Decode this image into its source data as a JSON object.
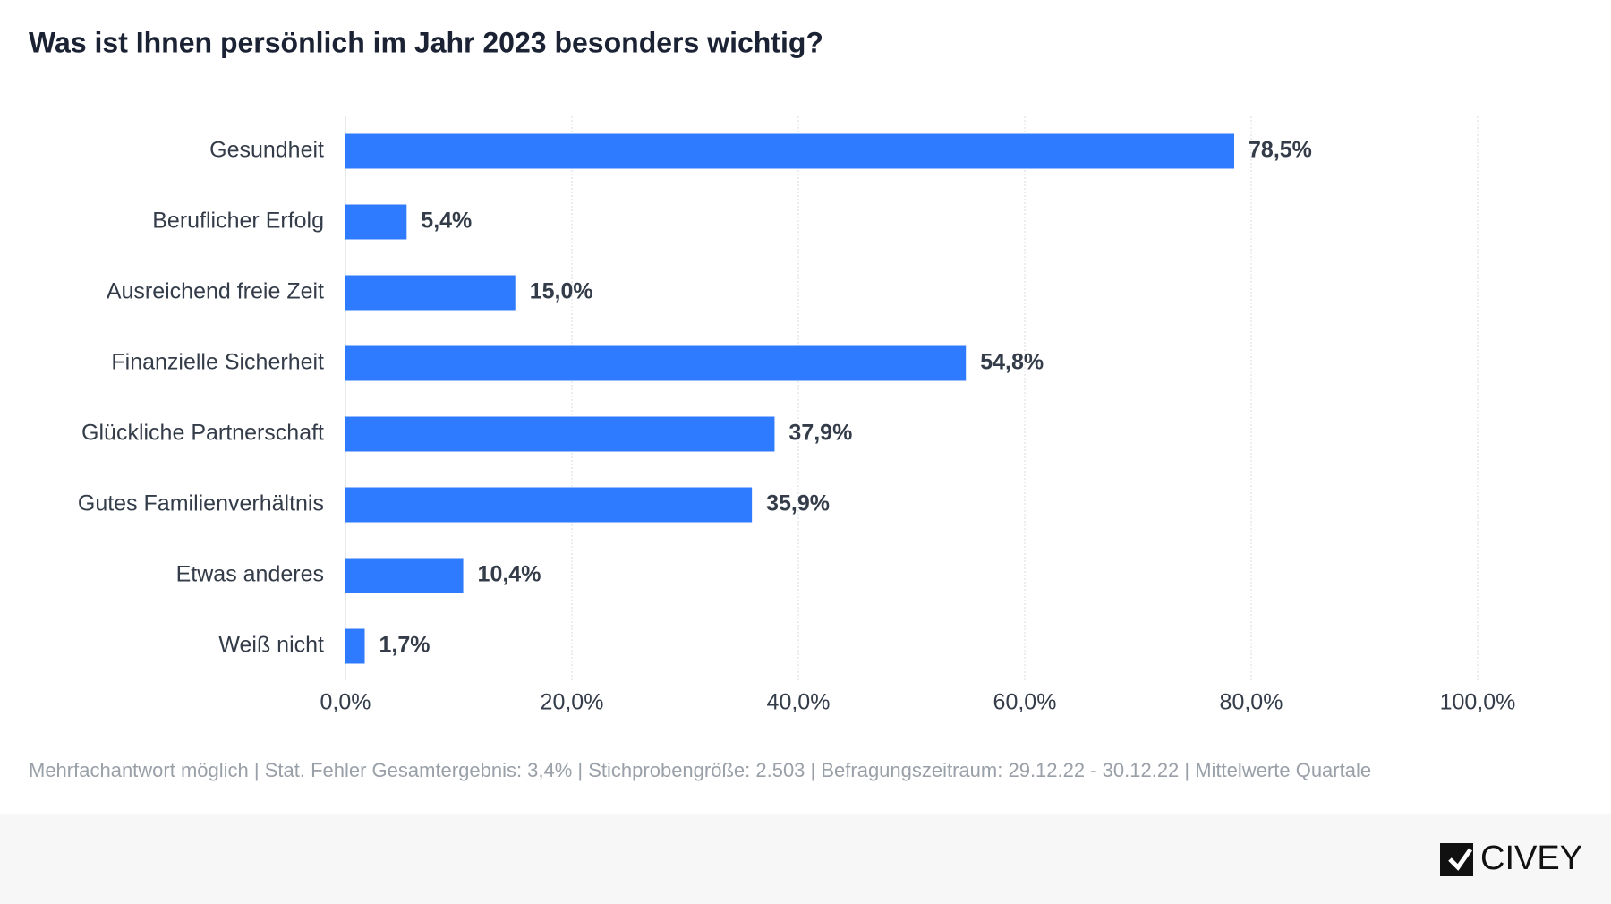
{
  "chart_data": {
    "type": "hbar",
    "title": "Was ist Ihnen persönlich im Jahr 2023 besonders wichtig?",
    "categories": [
      "Gesundheit",
      "Beruflicher Erfolg",
      "Ausreichend freie Zeit",
      "Finanzielle Sicherheit",
      "Glückliche Partnerschaft",
      "Gutes Familienverhältnis",
      "Etwas anderes",
      "Weiß nicht"
    ],
    "values": [
      78.5,
      5.4,
      15.0,
      54.8,
      37.9,
      35.9,
      10.4,
      1.7
    ],
    "value_labels": [
      "78,5%",
      "5,4%",
      "15,0%",
      "54,8%",
      "37,9%",
      "35,9%",
      "10,4%",
      "1,7%"
    ],
    "color": "#2f7bff",
    "xlim": [
      0,
      100
    ],
    "xticks": [
      {
        "value": 0,
        "label": "0,0%"
      },
      {
        "value": 20,
        "label": "20,0%"
      },
      {
        "value": 40,
        "label": "40,0%"
      },
      {
        "value": 60,
        "label": "60,0%"
      },
      {
        "value": 80,
        "label": "80,0%"
      },
      {
        "value": 100,
        "label": "100,0%"
      }
    ],
    "grid": true,
    "footnote": "Mehrfachantwort möglich | Stat. Fehler Gesamtergebnis: 3,4% | Stichprobengröße: 2.503 | Befragungszeitraum: 29.12.22 - 30.12.22 | Mittelwerte Quartale"
  },
  "brand": "CIVEY"
}
